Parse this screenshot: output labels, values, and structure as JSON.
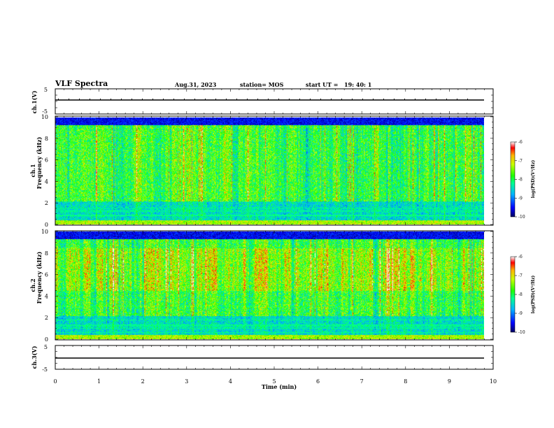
{
  "header": {
    "title": "VLF Spectra",
    "date": "Aug.31, 2023",
    "station": "station= MOS",
    "start_label": "start  UT  =",
    "start_time": "19: 40: 1"
  },
  "colors": {
    "spectrogram_scale": [
      "#000080",
      "#0000ff",
      "#00c8ff",
      "#00ff80",
      "#c8ff00",
      "#ffc800",
      "#ff0000"
    ],
    "axis": "#000000",
    "trace": "#000000"
  },
  "chart_data": [
    {
      "type": "line",
      "label": "ch.1(V)",
      "y_range": [
        -5,
        5
      ],
      "y_ticks": [
        "5",
        "-5"
      ],
      "series": [
        {
          "values": [
            0
          ]
        }
      ],
      "x_range_min": [
        0,
        10
      ]
    },
    {
      "type": "heatmap",
      "ylabel_top": "ch.1",
      "ylabel": "Frequency (kHz)",
      "y_range_khz": [
        0,
        10
      ],
      "y_ticks": [
        "0",
        "2",
        "4",
        "6",
        "8",
        "10"
      ],
      "x_range_min": [
        0,
        10
      ],
      "colorbar": {
        "label": "log(PSD)(V²/Hz)",
        "range": [
          -10,
          -6
        ],
        "ticks": [
          "-6",
          "-7",
          "-8",
          "-9",
          "-10"
        ]
      }
    },
    {
      "type": "heatmap",
      "ylabel_top": "ch.2",
      "ylabel": "Frequency (kHz)",
      "y_range_khz": [
        0,
        10
      ],
      "y_ticks": [
        "0",
        "2",
        "4",
        "6",
        "8",
        "10"
      ],
      "x_range_min": [
        0,
        10
      ],
      "colorbar": {
        "label": "log(PSD)(V²/Hz)",
        "range": [
          -10,
          -6
        ],
        "ticks": [
          "-6",
          "-7",
          "-8",
          "-9",
          "-10"
        ]
      }
    },
    {
      "type": "line",
      "label": "ch.3(V)",
      "y_range": [
        -5,
        5
      ],
      "y_ticks": [
        "5",
        "-5"
      ],
      "series": [
        {
          "values": [
            0
          ]
        }
      ],
      "x_range_min": [
        0,
        10
      ]
    }
  ],
  "x_axis": {
    "label": "Time  (min)",
    "ticks": [
      "0",
      "1",
      "2",
      "3",
      "4",
      "5",
      "6",
      "7",
      "8",
      "9",
      "10"
    ],
    "data_end_min": 9.8
  }
}
